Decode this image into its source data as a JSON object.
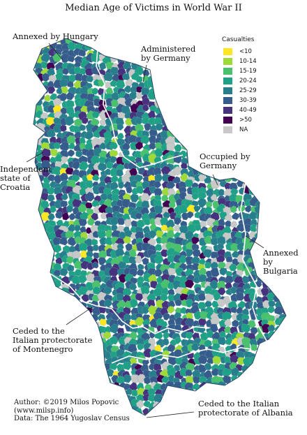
{
  "title": "Median Age of Victims in World War II",
  "legend": {
    "title": "Casualties",
    "items": [
      {
        "label": "<10",
        "color": "#fde725"
      },
      {
        "label": "10-14",
        "color": "#a0da39"
      },
      {
        "label": "15-19",
        "color": "#4ac16d"
      },
      {
        "label": "20-24",
        "color": "#1fa187"
      },
      {
        "label": "25-29",
        "color": "#277f8e"
      },
      {
        "label": "30-39",
        "color": "#365c8d"
      },
      {
        "label": "40-49",
        "color": "#46327e"
      },
      {
        "label": ">50",
        "color": "#440154"
      },
      {
        "label": "NA",
        "color": "#c8c8c8"
      }
    ]
  },
  "annotations": {
    "hungary": "Annexed by Hungary",
    "germany_admin": "Administered\nby Germany",
    "croatia": "Independent\nstate of\nCroatia",
    "germany_occupied": "Occupied by\nGermany",
    "bulgaria": "Annexed\nby Bulgaria",
    "montenegro": "Ceded to the\nItalian protectorate\nof Montenegro",
    "albania": "Ceded to the Italian\nprotectorate of Albania"
  },
  "credits": {
    "author": "Author: ©2019 Milos Popovic",
    "site": "(www.milsp.info)",
    "data": "Data: The 1964 Yugoslav Census"
  }
}
